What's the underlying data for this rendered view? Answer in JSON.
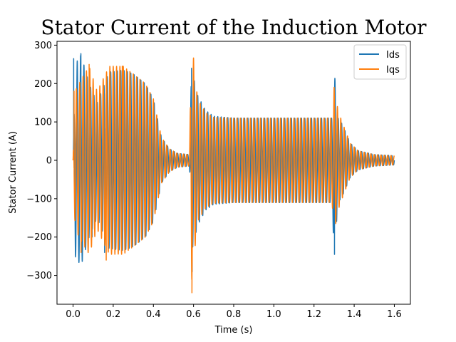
{
  "chart_data": {
    "type": "line",
    "title": "Stator Current of the Induction Motor",
    "xlabel": "Time (s)",
    "ylabel": "Stator Current (A)",
    "xlim": [
      -0.08,
      1.68
    ],
    "ylim": [
      -375,
      310
    ],
    "xticks": [
      0.0,
      0.2,
      0.4,
      0.6,
      0.8,
      1.0,
      1.2,
      1.4,
      1.6
    ],
    "xtick_labels": [
      "0.0",
      "0.2",
      "0.4",
      "0.6",
      "0.8",
      "1.0",
      "1.2",
      "1.4",
      "1.6"
    ],
    "yticks": [
      -300,
      -200,
      -100,
      0,
      100,
      200,
      300
    ],
    "ytick_labels": [
      "−300",
      "−200",
      "−100",
      "0",
      "100",
      "200",
      "300"
    ],
    "grid": false,
    "legend_position": "top-right",
    "frequency_hz": 60,
    "series": [
      {
        "name": "Ids",
        "color": "#1f77b4",
        "phase_cycles": 0.0,
        "envelope": [
          [
            0.0,
            0
          ],
          [
            0.01,
            250
          ],
          [
            0.04,
            275
          ],
          [
            0.08,
            200
          ],
          [
            0.12,
            150
          ],
          [
            0.18,
            230
          ],
          [
            0.25,
            235
          ],
          [
            0.3,
            225
          ],
          [
            0.36,
            200
          ],
          [
            0.4,
            160
          ],
          [
            0.44,
            60
          ],
          [
            0.48,
            30
          ],
          [
            0.52,
            18
          ],
          [
            0.58,
            15
          ],
          [
            0.59,
            240
          ],
          [
            0.62,
            170
          ],
          [
            0.66,
            130
          ],
          [
            0.7,
            115
          ],
          [
            0.8,
            110
          ],
          [
            1.0,
            110
          ],
          [
            1.29,
            110
          ],
          [
            1.3,
            240
          ],
          [
            1.32,
            110
          ],
          [
            1.34,
            95
          ],
          [
            1.38,
            45
          ],
          [
            1.42,
            25
          ],
          [
            1.5,
            15
          ],
          [
            1.6,
            12
          ]
        ],
        "peaks": [
          [
            0.003,
            265
          ],
          [
            0.039,
            278
          ],
          [
            0.095,
            -200
          ],
          [
            0.157,
            -240
          ],
          [
            0.59,
            240
          ],
          [
            0.593,
            -290
          ],
          [
            1.302,
            -245
          ]
        ]
      },
      {
        "name": "Iqs",
        "color": "#ff7f0e",
        "phase_cycles": 0.25,
        "envelope": [
          [
            0.0,
            0
          ],
          [
            0.01,
            180
          ],
          [
            0.04,
            210
          ],
          [
            0.08,
            245
          ],
          [
            0.12,
            180
          ],
          [
            0.18,
            245
          ],
          [
            0.25,
            245
          ],
          [
            0.3,
            225
          ],
          [
            0.36,
            200
          ],
          [
            0.4,
            160
          ],
          [
            0.44,
            60
          ],
          [
            0.48,
            30
          ],
          [
            0.52,
            18
          ],
          [
            0.58,
            15
          ],
          [
            0.59,
            320
          ],
          [
            0.62,
            160
          ],
          [
            0.66,
            125
          ],
          [
            0.7,
            112
          ],
          [
            0.8,
            110
          ],
          [
            1.0,
            110
          ],
          [
            1.29,
            110
          ],
          [
            1.3,
            190
          ],
          [
            1.32,
            130
          ],
          [
            1.34,
            100
          ],
          [
            1.38,
            45
          ],
          [
            1.42,
            25
          ],
          [
            1.5,
            15
          ],
          [
            1.6,
            12
          ]
        ],
        "peaks": [
          [
            0.005,
            180
          ],
          [
            0.04,
            -240
          ],
          [
            0.08,
            250
          ],
          [
            0.165,
            -260
          ],
          [
            0.245,
            245
          ],
          [
            0.592,
            -345
          ],
          [
            1.3,
            190
          ]
        ]
      }
    ]
  }
}
